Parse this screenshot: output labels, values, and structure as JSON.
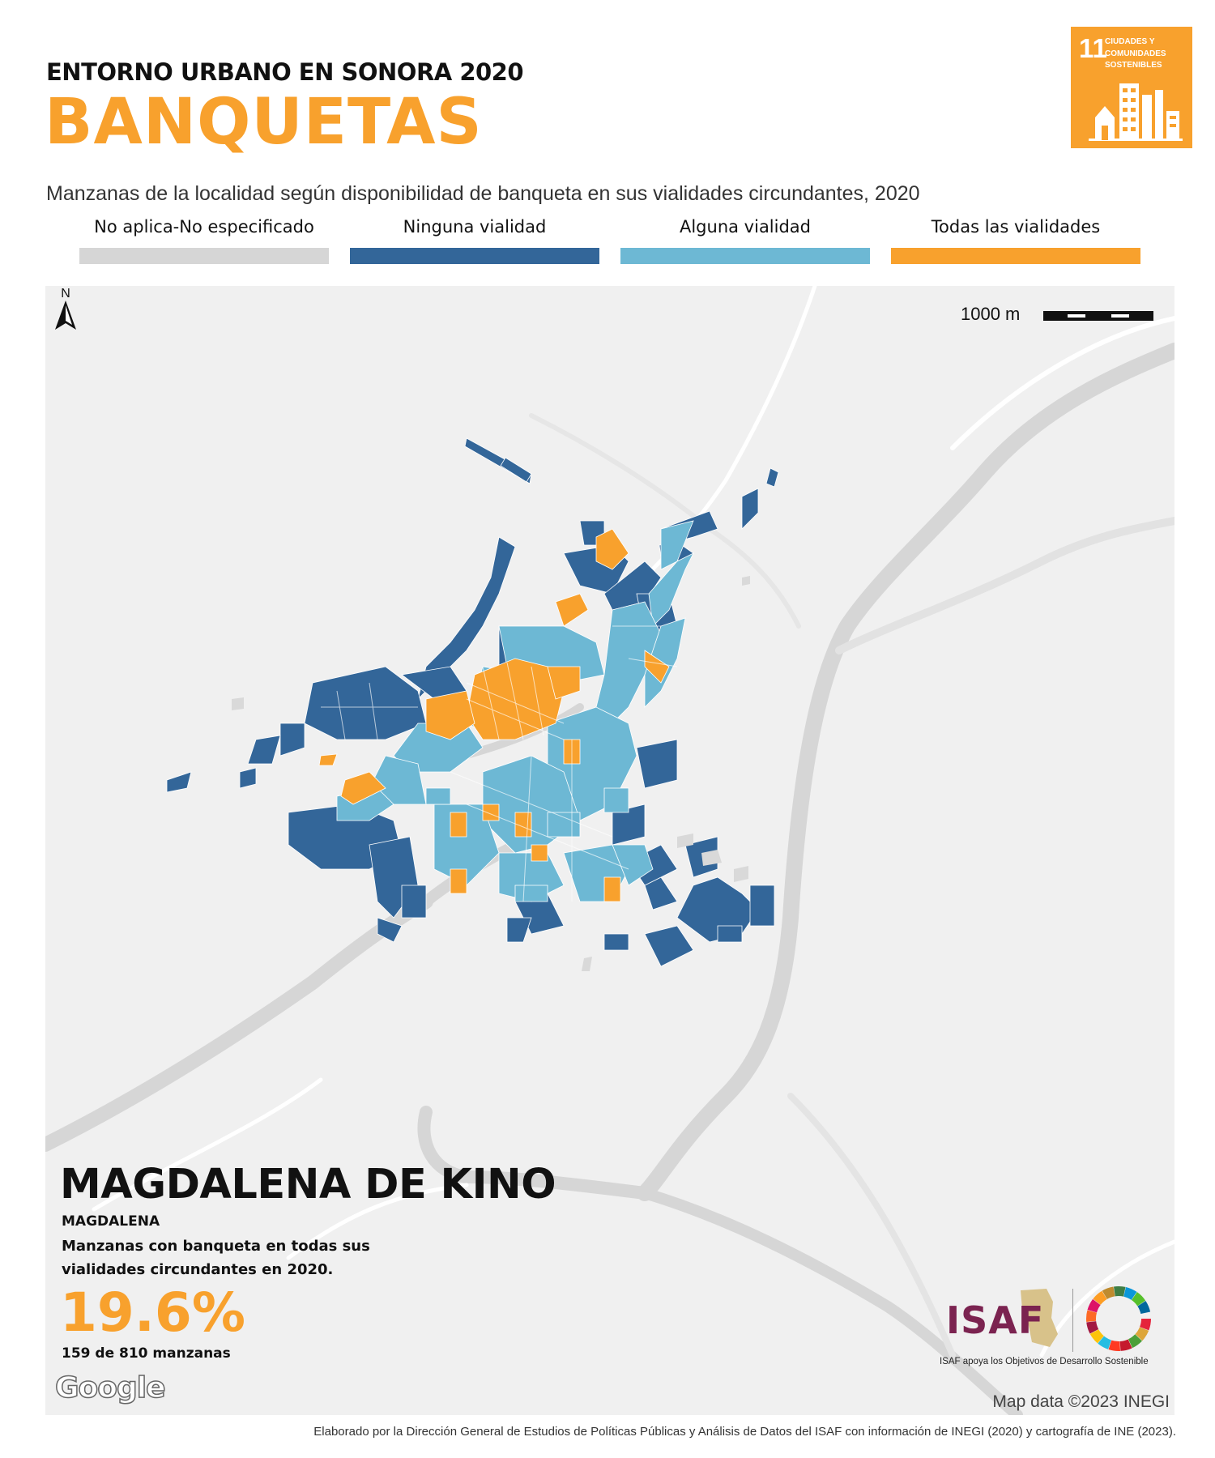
{
  "header": {
    "kicker": "ENTORNO URBANO EN SONORA 2020",
    "title": "BANQUETAS",
    "subtitle": "Manzanas de la localidad según disponibilidad de banqueta en sus vialidades circundantes, 2020"
  },
  "sdg_badge": {
    "number": "11",
    "text": "CIUDADES Y COMUNIDADES SOSTENIBLES",
    "color": "#F8A12D",
    "icon": "city-buildings-icon"
  },
  "legend": {
    "items": [
      {
        "label": "No aplica-No especificado",
        "color": "#D6D6D6"
      },
      {
        "label": "Ninguna vialidad",
        "color": "#336699"
      },
      {
        "label": "Alguna vialidad",
        "color": "#6DB8D4"
      },
      {
        "label": "Todas las vialidades",
        "color": "#F8A12D"
      }
    ]
  },
  "map": {
    "scale_label": "1000 m",
    "north_label": "N",
    "place_name": "MAGDALENA DE KINO",
    "municipality": "MAGDALENA",
    "stat_description": "Manzanas con banqueta en todas sus vialidades circundantes en 2020.",
    "percentage": "19.6%",
    "count_text": "159 de 810 manzanas",
    "google_logo": "Google",
    "attribution": "Map data ©2023 INEGI",
    "background_color": "#F0F0F0",
    "road_color": "#D9D9D9"
  },
  "logos": {
    "isaf_name": "ISAF",
    "isaf_tagline": "ISAF apoya los Objetivos de Desarrollo Sostenible",
    "sdg_wheel_icon": "sdg-wheel-icon"
  },
  "footer": {
    "credit": "Elaborado por la Dirección General de Estudios de Políticas Públicas y Análisis de Datos del ISAF con información de INEGI (2020) y cartografía de INE (2023)."
  }
}
